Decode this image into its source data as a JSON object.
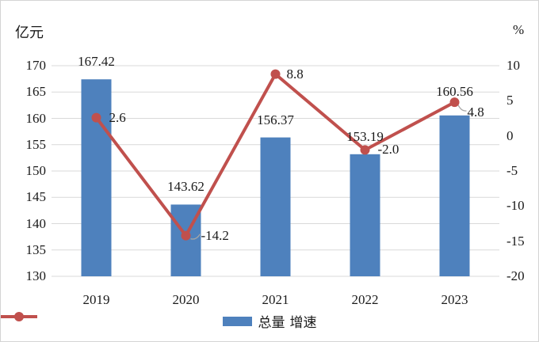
{
  "frame": {
    "background": "#ffffff",
    "border_color": "#d4d4d4",
    "gridline_color": "#d9d9d9",
    "leader_color": "#a6a6a6",
    "text_color": "#1a1a1a"
  },
  "chart_data": {
    "type": "bar",
    "subtype": "combo-bar-line-dual-axis",
    "categories": [
      "2019",
      "2020",
      "2021",
      "2022",
      "2023"
    ],
    "series": [
      {
        "name": "总量",
        "type": "bar",
        "axis": "left",
        "color": "#4e81bd",
        "values": [
          167.42,
          143.62,
          156.37,
          153.19,
          160.56
        ],
        "labels": [
          "167.42",
          "143.62",
          "156.37",
          "153.19",
          "160.56"
        ]
      },
      {
        "name": "增速",
        "type": "line",
        "axis": "right",
        "color": "#c0504d",
        "values": [
          2.6,
          -14.2,
          8.8,
          -2.0,
          4.8
        ],
        "labels": [
          "2.6",
          "-14.2",
          "8.8",
          "-2.0",
          "4.8"
        ]
      }
    ],
    "left_axis": {
      "title": "亿元",
      "min": 130,
      "max": 170,
      "step": 5,
      "ticks": [
        "170",
        "165",
        "160",
        "155",
        "150",
        "145",
        "140",
        "135",
        "130"
      ]
    },
    "right_axis": {
      "title": "%",
      "min": -20,
      "max": 10,
      "step": 5,
      "ticks": [
        "10",
        "5",
        "0",
        "-5",
        "-10",
        "-15",
        "-20"
      ]
    },
    "grid": true,
    "legend_position": "bottom",
    "title": "",
    "xlabel": ""
  },
  "legend": {
    "items": [
      {
        "label": "总量",
        "marker": "bar",
        "color": "#4e81bd"
      },
      {
        "label": "增速",
        "marker": "line-dot",
        "color": "#c0504d"
      }
    ]
  }
}
